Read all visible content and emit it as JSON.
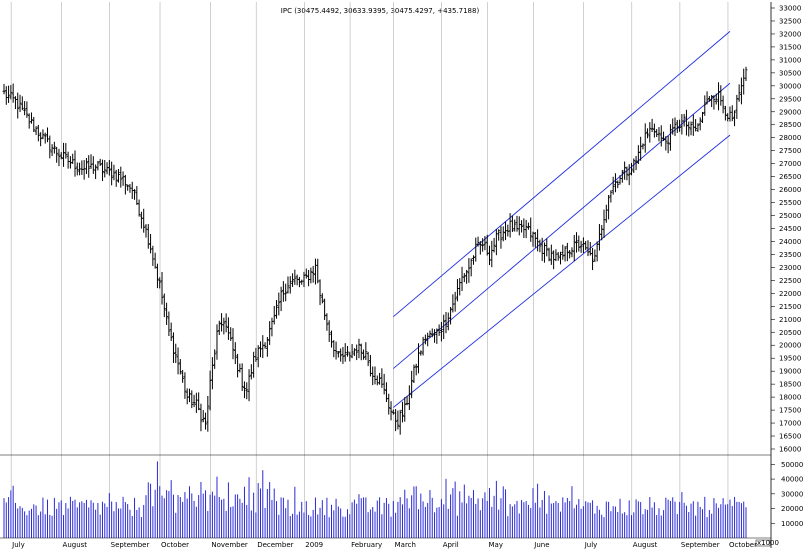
{
  "chart_data": {
    "type": "ohlc",
    "title": "IPC (30475.4492, 30633.9395, 30475.4297, +435.7188)",
    "colors": {
      "price": "#000000",
      "volume": "#2b2bd8",
      "channel": "#1f2ee0",
      "grid": "#b0b0b0"
    },
    "price_axis": {
      "min": 16000,
      "max": 33000,
      "step": 500,
      "labels": [
        "33000",
        "32500",
        "32000",
        "31500",
        "31000",
        "30500",
        "30000",
        "29500",
        "29000",
        "28500",
        "28000",
        "27500",
        "27000",
        "26500",
        "26000",
        "25500",
        "25000",
        "24500",
        "24000",
        "23500",
        "23000",
        "22500",
        "22000",
        "21500",
        "21000",
        "20500",
        "20000",
        "19500",
        "19000",
        "18500",
        "18000",
        "17500",
        "17000",
        "16500",
        "16000"
      ]
    },
    "volume_axis": {
      "min": 0,
      "max": 55000,
      "labels": [
        "50000",
        "40000",
        "30000",
        "20000",
        "10000"
      ],
      "label_values": [
        50000,
        40000,
        30000,
        20000,
        10000
      ],
      "unit_label": "x1000"
    },
    "x_axis": {
      "months": [
        {
          "label": "July",
          "index": 4
        },
        {
          "label": "August",
          "index": 26
        },
        {
          "label": "September",
          "index": 47
        },
        {
          "label": "October",
          "index": 69
        },
        {
          "label": "November",
          "index": 91
        },
        {
          "label": "December",
          "index": 111
        },
        {
          "label": "2009",
          "index": 132
        },
        {
          "label": "February",
          "index": 152
        },
        {
          "label": "March",
          "index": 171
        },
        {
          "label": "April",
          "index": 192
        },
        {
          "label": "May",
          "index": 212
        },
        {
          "label": "June",
          "index": 232
        },
        {
          "label": "July",
          "index": 254
        },
        {
          "label": "August",
          "index": 275
        },
        {
          "label": "September",
          "index": 296
        },
        {
          "label": "October",
          "index": 317
        }
      ],
      "count": 325
    },
    "anchors": [
      [
        0,
        29700
      ],
      [
        5,
        29400
      ],
      [
        10,
        28800
      ],
      [
        15,
        28200
      ],
      [
        20,
        27700
      ],
      [
        25,
        27300
      ],
      [
        30,
        27000
      ],
      [
        35,
        26800
      ],
      [
        40,
        26900
      ],
      [
        45,
        26700
      ],
      [
        48,
        26600
      ],
      [
        52,
        26400
      ],
      [
        56,
        26000
      ],
      [
        60,
        25000
      ],
      [
        64,
        23800
      ],
      [
        68,
        22300
      ],
      [
        72,
        20500
      ],
      [
        76,
        19300
      ],
      [
        80,
        18000
      ],
      [
        84,
        17700
      ],
      [
        88,
        16900
      ],
      [
        90,
        18500
      ],
      [
        93,
        20400
      ],
      [
        96,
        21000
      ],
      [
        100,
        19800
      ],
      [
        104,
        18600
      ],
      [
        106,
        18300
      ],
      [
        109,
        19400
      ],
      [
        112,
        19900
      ],
      [
        115,
        20300
      ],
      [
        118,
        21000
      ],
      [
        121,
        21900
      ],
      [
        124,
        22400
      ],
      [
        127,
        22500
      ],
      [
        130,
        22400
      ],
      [
        133,
        22700
      ],
      [
        136,
        23000
      ],
      [
        138,
        22000
      ],
      [
        140,
        21200
      ],
      [
        143,
        20200
      ],
      [
        146,
        19500
      ],
      [
        150,
        19600
      ],
      [
        154,
        19900
      ],
      [
        158,
        19700
      ],
      [
        160,
        19100
      ],
      [
        164,
        18600
      ],
      [
        167,
        18000
      ],
      [
        170,
        17200
      ],
      [
        172,
        17100
      ],
      [
        175,
        17500
      ],
      [
        178,
        18600
      ],
      [
        181,
        19600
      ],
      [
        184,
        20300
      ],
      [
        188,
        20400
      ],
      [
        192,
        20800
      ],
      [
        196,
        21600
      ],
      [
        200,
        22600
      ],
      [
        203,
        23000
      ],
      [
        206,
        23700
      ],
      [
        209,
        23900
      ],
      [
        212,
        23500
      ],
      [
        215,
        24100
      ],
      [
        218,
        24400
      ],
      [
        221,
        24600
      ],
      [
        224,
        24400
      ],
      [
        228,
        24500
      ],
      [
        231,
        24200
      ],
      [
        234,
        23800
      ],
      [
        237,
        23600
      ],
      [
        240,
        23400
      ],
      [
        243,
        23300
      ],
      [
        246,
        23700
      ],
      [
        249,
        23800
      ],
      [
        252,
        23900
      ],
      [
        255,
        23500
      ],
      [
        258,
        23300
      ],
      [
        261,
        24600
      ],
      [
        264,
        25800
      ],
      [
        267,
        26300
      ],
      [
        270,
        26600
      ],
      [
        273,
        26800
      ],
      [
        276,
        27100
      ],
      [
        279,
        27900
      ],
      [
        282,
        28300
      ],
      [
        285,
        28300
      ],
      [
        288,
        27800
      ],
      [
        291,
        28100
      ],
      [
        294,
        28500
      ],
      [
        297,
        28600
      ],
      [
        300,
        28300
      ],
      [
        303,
        28400
      ],
      [
        306,
        29200
      ],
      [
        309,
        29700
      ],
      [
        312,
        29600
      ],
      [
        315,
        29100
      ],
      [
        318,
        28600
      ],
      [
        320,
        29300
      ],
      [
        322,
        29900
      ],
      [
        324,
        30400
      ]
    ],
    "channel": {
      "upper": {
        "start": [
          170,
          21100
        ],
        "end": [
          317,
          32100
        ]
      },
      "middle": {
        "start": [
          170,
          19100
        ],
        "end": [
          317,
          30100
        ]
      },
      "lower": {
        "start": [
          170,
          17600
        ],
        "end": [
          317,
          28100
        ]
      }
    }
  }
}
